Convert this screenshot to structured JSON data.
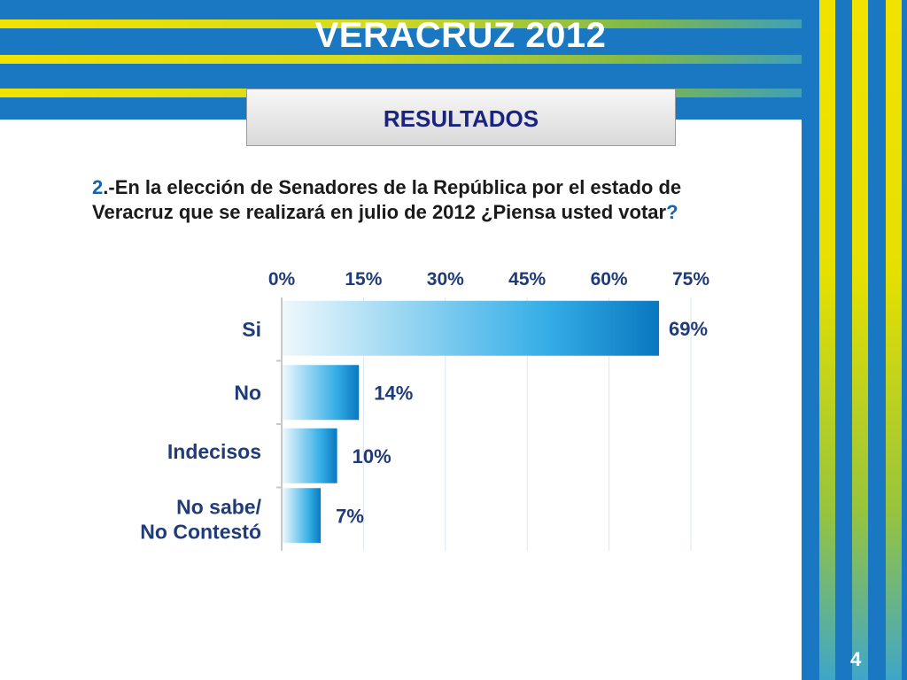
{
  "slide": {
    "title": "VERACRUZ 2012",
    "section": "RESULTADOS",
    "question": {
      "number": "2",
      "text": ".-En la elección de Senadores de la República  por el estado de Veracruz que se realizará en julio de 2012 ¿Piensa usted votar",
      "end": "?"
    },
    "page_number": "4"
  },
  "colors": {
    "background_blue": "#1a77c2",
    "stripe_yellow": "#f2e200",
    "title_text": "#ffffff",
    "section_text": "#1a237e",
    "question_number": "#1763b0",
    "bar_dark": "#0077c0",
    "bar_light": "#e8f6fc",
    "axis_text": "#1f3c78"
  },
  "chart_data": {
    "type": "bar",
    "orientation": "horizontal",
    "categories": [
      [
        "Si"
      ],
      [
        "No"
      ],
      [
        "Indecisos"
      ],
      [
        "No sabe/",
        "No Contestó"
      ]
    ],
    "values": [
      69,
      14,
      10,
      7
    ],
    "value_labels": [
      "69%",
      "14%",
      "10%",
      "7%"
    ],
    "x_ticks": [
      "0%",
      "15%",
      "30%",
      "45%",
      "60%",
      "75%"
    ],
    "xlim": [
      0,
      75
    ],
    "grid": true,
    "legend": "none"
  }
}
